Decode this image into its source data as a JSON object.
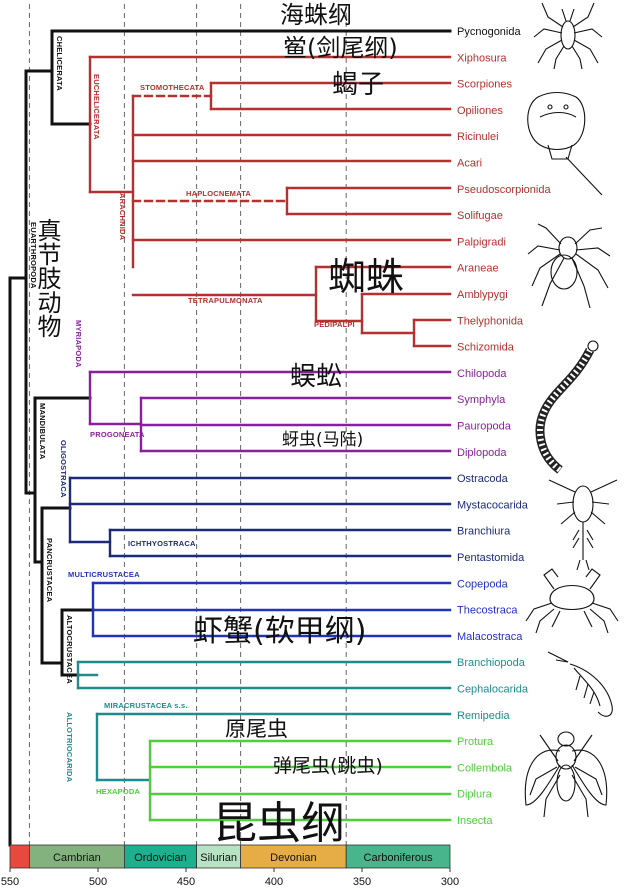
{
  "taxa": [
    {
      "name": "Pycnogonida",
      "color": "#111111"
    },
    {
      "name": "Xiphosura",
      "color": "#b5302e"
    },
    {
      "name": "Scorpiones",
      "color": "#b5302e"
    },
    {
      "name": "Opiliones",
      "color": "#b5302e"
    },
    {
      "name": "Ricinulei",
      "color": "#b5302e"
    },
    {
      "name": "Acari",
      "color": "#b5302e"
    },
    {
      "name": "Pseudoscorpionida",
      "color": "#b5302e"
    },
    {
      "name": "Solifugae",
      "color": "#b5302e"
    },
    {
      "name": "Palpigradi",
      "color": "#b5302e"
    },
    {
      "name": "Araneae",
      "color": "#b5302e"
    },
    {
      "name": "Amblypygi",
      "color": "#b5302e"
    },
    {
      "name": "Thelyphonida",
      "color": "#b5302e"
    },
    {
      "name": "Schizomida",
      "color": "#b5302e"
    },
    {
      "name": "Chilopoda",
      "color": "#8a1f9e"
    },
    {
      "name": "Symphyla",
      "color": "#8a1f9e"
    },
    {
      "name": "Pauropoda",
      "color": "#8a1f9e"
    },
    {
      "name": "Diplopoda",
      "color": "#8a1f9e"
    },
    {
      "name": "Ostracoda",
      "color": "#1b2a7a"
    },
    {
      "name": "Mystacocarida",
      "color": "#1b2a7a"
    },
    {
      "name": "Branchiura",
      "color": "#1b2a7a"
    },
    {
      "name": "Pentastomida",
      "color": "#1b2a7a"
    },
    {
      "name": "Copepoda",
      "color": "#2233bb"
    },
    {
      "name": "Thecostraca",
      "color": "#2233bb"
    },
    {
      "name": "Malacostraca",
      "color": "#2233bb"
    },
    {
      "name": "Branchiopoda",
      "color": "#1f8c8c"
    },
    {
      "name": "Cephalocarida",
      "color": "#1f8c8c"
    },
    {
      "name": "Remipedia",
      "color": "#1f8c8c"
    },
    {
      "name": "Protura",
      "color": "#4fcf3b"
    },
    {
      "name": "Collembola",
      "color": "#4fcf3b"
    },
    {
      "name": "Diplura",
      "color": "#4fcf3b"
    },
    {
      "name": "Insecta",
      "color": "#4fcf3b"
    }
  ],
  "clades": {
    "chelicerata": "CHELICERATA",
    "euchelicerata": "EUCHELICERATA",
    "stomothecata": "STOMOTHECATA",
    "arachnida": "ARACHNIDA",
    "haplocnemata": "HAPLOCNEMATA",
    "tetrapulmonata": "TETRAPULMONATA",
    "pedipalpi": "PEDIPALPI",
    "euarthropoda": "EUARTHROPODA",
    "myriapoda": "MYRIAPODA",
    "progoneata": "PROGONEATA",
    "mandibulata": "MANDIBULATA",
    "oligostraca": "OLIGOSTRACA",
    "ichthyostraca": "ICHTHYOSTRACA",
    "pancrustacea": "PANCRUSTACEA",
    "multicrustacea": "MULTICRUSTACEA",
    "altocrustacea": "ALTOCRUSTACEA",
    "allotriocarida": "ALLOTRIOCARIDA",
    "miracrustacea": "MIRACRUSTACEA s.s.",
    "hexapoda": "HEXAPODA"
  },
  "annotations": {
    "pycnogonida_cn": "海蛛纲",
    "xiphosura_cn": "鲎(剑尾纲)",
    "scorpion_cn": "蝎子",
    "spider_cn": "蜘蛛",
    "euarthropoda_cn": "真节肢动物",
    "chilopoda_cn": "蜈蚣",
    "diplopoda_cn": "蚜虫(马陆)",
    "malacostraca_cn": "虾蟹(软甲纲)",
    "protura_cn": "原尾虫",
    "collembola_cn": "弹尾虫(跳虫)",
    "insecta_cn": "昆虫纲"
  },
  "timescale": {
    "periods": [
      {
        "name": "",
        "start": 550,
        "end": 539,
        "color": "#e8493f"
      },
      {
        "name": "Cambrian",
        "start": 539,
        "end": 485,
        "color": "#84b27f"
      },
      {
        "name": "Ordovician",
        "start": 485,
        "end": 444,
        "color": "#1db08f"
      },
      {
        "name": "Silurian",
        "start": 444,
        "end": 419,
        "color": "#b6e3c3"
      },
      {
        "name": "Devonian",
        "start": 419,
        "end": 359,
        "color": "#e6ad47"
      },
      {
        "name": "Carboniferous",
        "start": 359,
        "end": 300,
        "color": "#49b58c"
      }
    ],
    "ticks": [
      "550",
      "500",
      "450",
      "400",
      "350",
      "300"
    ]
  },
  "icons": [
    "sea-spider-icon",
    "horseshoe-crab-icon",
    "spider-icon",
    "millipede-icon",
    "copepod-icon",
    "crab-icon",
    "shrimp-icon",
    "fly-icon"
  ]
}
